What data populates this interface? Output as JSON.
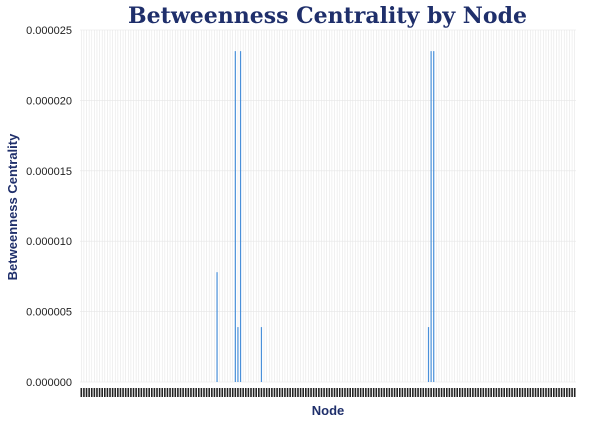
{
  "chart_data": {
    "type": "bar",
    "title": "Betweenness Centrality by Node",
    "xlabel": "Node",
    "ylabel": "Betweenness Centrality",
    "ylim": [
      0,
      2.5e-05
    ],
    "yticks": [
      "0.000000",
      "0.000005",
      "0.000010",
      "0.000015",
      "0.000020",
      "0.000025"
    ],
    "grid": true,
    "bar_color": "#4a90d9",
    "node_count": 190,
    "nonzero_values": [
      {
        "index": 52,
        "value": 7.8e-06
      },
      {
        "index": 59,
        "value": 2.35e-05
      },
      {
        "index": 60,
        "value": 3.9e-06
      },
      {
        "index": 61,
        "value": 2.35e-05
      },
      {
        "index": 69,
        "value": 3.9e-06
      },
      {
        "index": 133,
        "value": 3.9e-06
      },
      {
        "index": 134,
        "value": 2.35e-05
      },
      {
        "index": 135,
        "value": 2.35e-05
      }
    ]
  }
}
